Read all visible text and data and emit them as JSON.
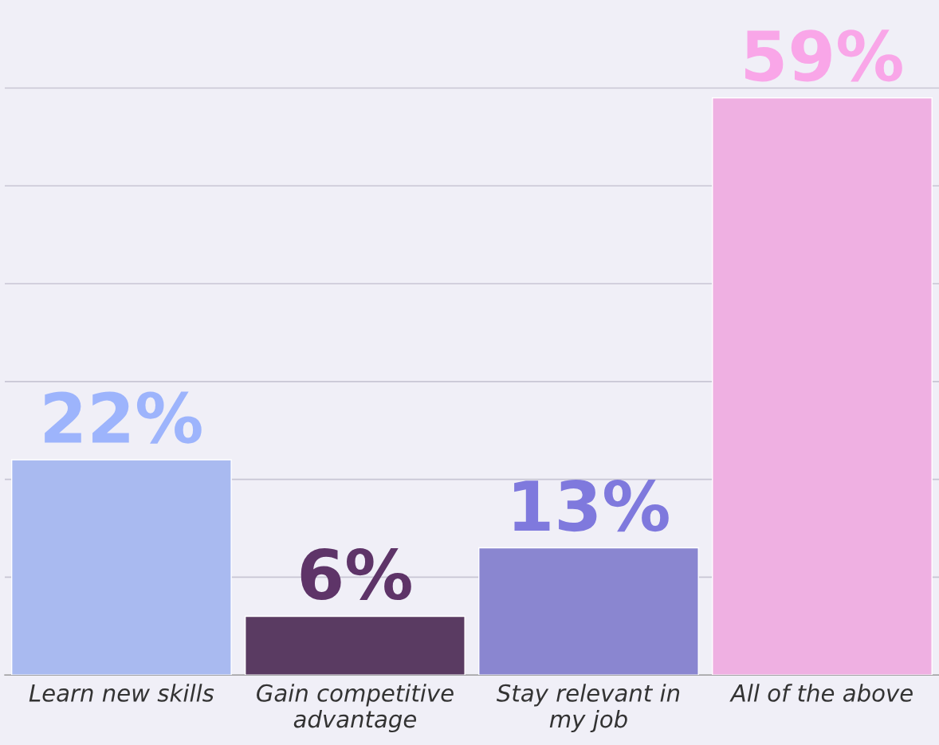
{
  "chart_data": {
    "type": "bar",
    "categories": [
      "Learn new skills",
      "Gain competitive\nadvantage",
      "Stay relevant in\nmy job",
      "All of the above"
    ],
    "values": [
      22,
      6,
      13,
      59
    ],
    "colors": [
      "#9db4fc",
      "#5e3468",
      "#7f79dd",
      "#f9a6e8"
    ],
    "value_labels": [
      "22%",
      "6%",
      "13%",
      "59%"
    ],
    "ylim": [
      0,
      69
    ],
    "yticks": [
      {
        "value": 10,
        "label": null
      },
      {
        "value": 20,
        "label": null
      },
      {
        "value": 30,
        "label": null
      },
      {
        "value": 40,
        "label": null
      },
      {
        "value": 50,
        "label": null
      },
      {
        "value": 60,
        "label": null
      }
    ],
    "grid": "y",
    "tick_labels": "x"
  }
}
